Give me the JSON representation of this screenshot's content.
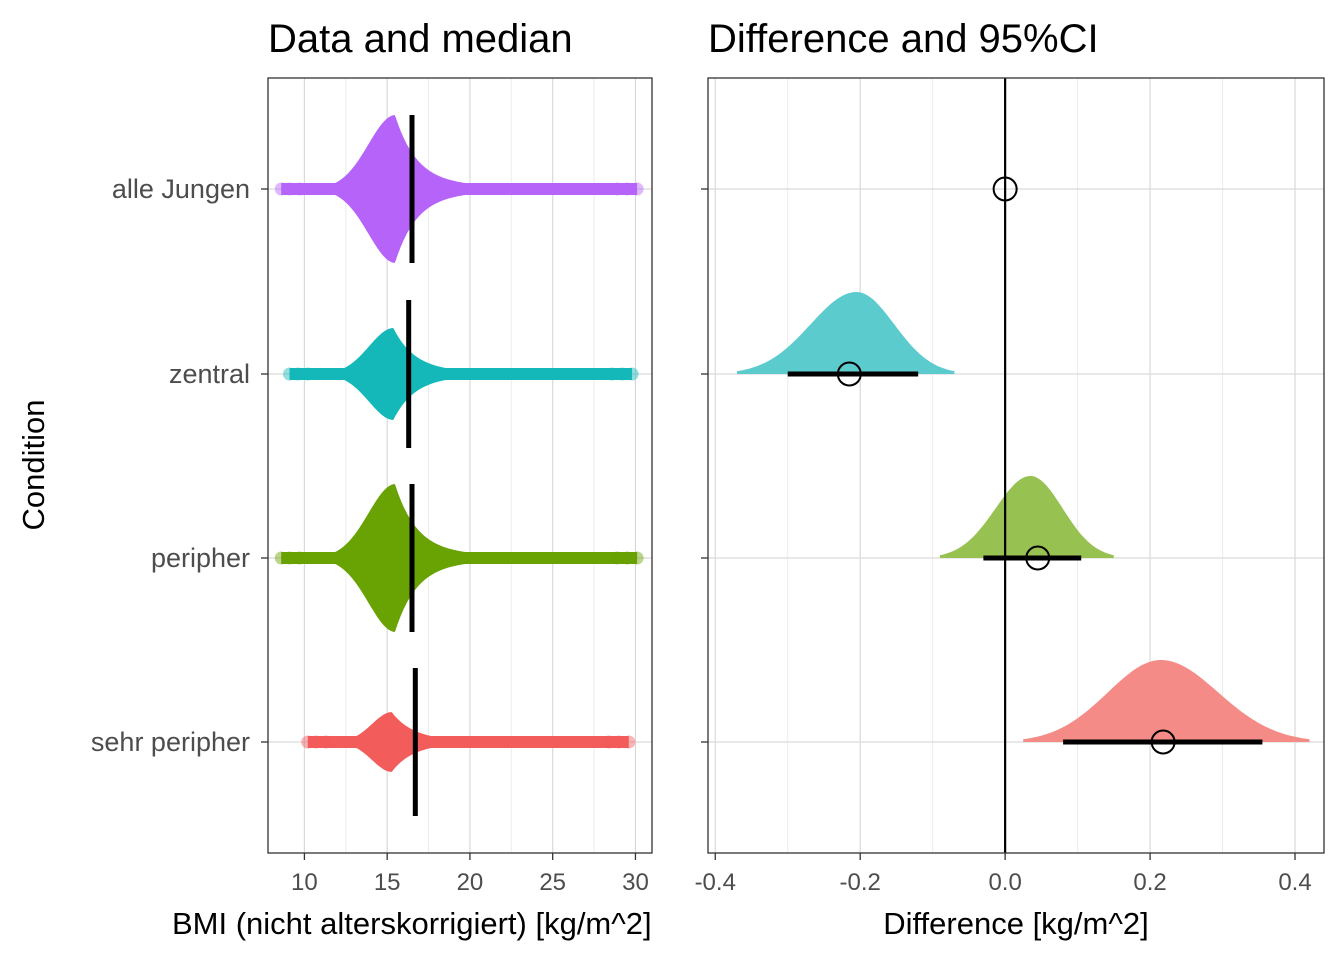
{
  "chart_data": [
    {
      "type": "scatter",
      "subtype": "beeswarm",
      "title": "Data and median",
      "xlabel": "BMI (nicht alterskorrigiert) [kg/m^2]",
      "ylabel": "Condition",
      "xlim": [
        7.8,
        31.0
      ],
      "xticks": [
        10,
        15,
        20,
        25,
        30
      ],
      "grid": true,
      "legend": "none",
      "categories": [
        "alle Jungen",
        "zentral",
        "peripher",
        "sehr peripher"
      ],
      "series": [
        {
          "name": "alle Jungen",
          "color": "#B663F9",
          "min": 8.6,
          "max": 30.1,
          "mode": 15.5,
          "median": 16.5
        },
        {
          "name": "zentral",
          "color": "#14B8B8",
          "min": 9.1,
          "max": 29.8,
          "mode": 15.4,
          "median": 16.3
        },
        {
          "name": "peripher",
          "color": "#68A203",
          "min": 8.6,
          "max": 30.1,
          "mode": 15.5,
          "median": 16.5
        },
        {
          "name": "sehr peripher",
          "color": "#F25C5A",
          "min": 10.2,
          "max": 29.6,
          "mode": 15.3,
          "median": 16.7
        }
      ]
    },
    {
      "type": "area",
      "subtype": "density-with-ci",
      "title": "Difference and 95%CI",
      "xlabel": "Difference [kg/m^2]",
      "xlim": [
        -0.41,
        0.44
      ],
      "xticks": [
        -0.4,
        -0.2,
        0.0,
        0.2,
        0.4
      ],
      "xtick_labels": [
        "-0.4",
        "-0.2",
        "0.0",
        "0.2",
        "0.4"
      ],
      "reference_line": 0.0,
      "grid": true,
      "legend": "none",
      "categories": [
        "alle Jungen",
        "zentral",
        "peripher",
        "sehr peripher"
      ],
      "series": [
        {
          "name": "alle Jungen",
          "estimate": 0.0,
          "ci": [
            0.0,
            0.0
          ],
          "density": false
        },
        {
          "name": "zentral",
          "color": "#5CCBCD",
          "estimate": -0.215,
          "ci": [
            -0.3,
            -0.12
          ],
          "density": true,
          "density_range": [
            -0.37,
            -0.07
          ],
          "density_peak": -0.205
        },
        {
          "name": "peripher",
          "color": "#97C150",
          "estimate": 0.045,
          "ci": [
            -0.03,
            0.105
          ],
          "density": true,
          "density_range": [
            -0.09,
            0.15
          ],
          "density_peak": 0.035
        },
        {
          "name": "sehr peripher",
          "color": "#F48B87",
          "estimate": 0.218,
          "ci": [
            0.08,
            0.355
          ],
          "density": true,
          "density_range": [
            0.025,
            0.42
          ],
          "density_peak": 0.215
        }
      ]
    }
  ]
}
